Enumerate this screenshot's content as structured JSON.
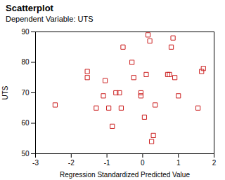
{
  "chart_data": {
    "type": "scatter",
    "title": "Scatterplot",
    "subtitle": "Dependent Variable: UTS",
    "xlabel": "Regression Standardized Predicted Value",
    "ylabel": "UTS",
    "x": [
      -2.45,
      -1.55,
      -1.55,
      -1.3,
      -1.1,
      -1.05,
      -0.95,
      -0.85,
      -0.75,
      -0.65,
      -0.6,
      -0.55,
      -0.3,
      -0.25,
      -0.05,
      -0.05,
      0.05,
      0.1,
      0.15,
      0.2,
      0.25,
      0.3,
      0.35,
      0.7,
      0.75,
      0.8,
      0.85,
      0.9,
      1.0,
      1.55,
      1.65,
      1.7
    ],
    "values": [
      66,
      77,
      75,
      65,
      69,
      74,
      65,
      59,
      70,
      70,
      65,
      85,
      80,
      75,
      70,
      69,
      62,
      76,
      89,
      87,
      54,
      56,
      66,
      76,
      76,
      85,
      88,
      75,
      69,
      65,
      77,
      78
    ],
    "xlim": [
      -3,
      2
    ],
    "ylim": [
      50,
      90
    ],
    "xticks": [
      -3,
      -2,
      -1,
      0,
      1,
      2
    ],
    "yticks": [
      50,
      60,
      70,
      80,
      90
    ],
    "color": "#cc2222",
    "marker": "square",
    "grid": false
  }
}
